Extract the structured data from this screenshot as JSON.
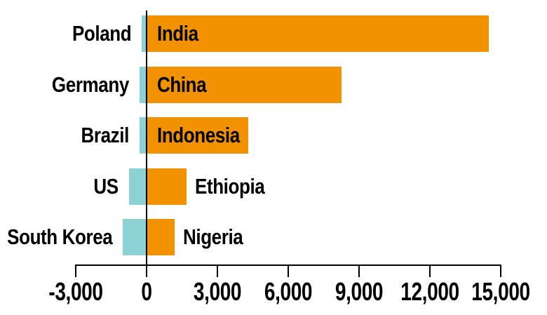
{
  "chart_data": {
    "type": "bar",
    "orientation": "horizontal",
    "title": "",
    "xlabel": "",
    "ylabel": "",
    "grid": false,
    "legend": false,
    "rows": [
      {
        "negative_label": "Poland",
        "negative_value": -200,
        "positive_label": "India",
        "positive_value": 14500,
        "positive_label_position": "inside"
      },
      {
        "negative_label": "Germany",
        "negative_value": -300,
        "positive_label": "China",
        "positive_value": 8250,
        "positive_label_position": "inside"
      },
      {
        "negative_label": "Brazil",
        "negative_value": -300,
        "positive_label": "Indonesia",
        "positive_value": 4300,
        "positive_label_position": "inside"
      },
      {
        "negative_label": "US",
        "negative_value": -750,
        "positive_label": "Ethiopia",
        "positive_value": 1700,
        "positive_label_position": "outside"
      },
      {
        "negative_label": "South Korea",
        "negative_value": -1000,
        "positive_label": "Nigeria",
        "positive_value": 1200,
        "positive_label_position": "outside"
      }
    ],
    "x_axis": {
      "range": [
        -3000,
        15000
      ],
      "ticks": [
        -3000,
        0,
        3000,
        6000,
        9000,
        12000,
        15000
      ],
      "tick_labels": [
        "-3,000",
        "0",
        "3,000",
        "6,000",
        "9,000",
        "12,000",
        "15,000"
      ]
    },
    "colors": {
      "positive_bar": "#F39200",
      "negative_bar": "#8CD2D5",
      "axis": "#000000",
      "text": "#000000",
      "background": "#FFFFFF"
    }
  }
}
